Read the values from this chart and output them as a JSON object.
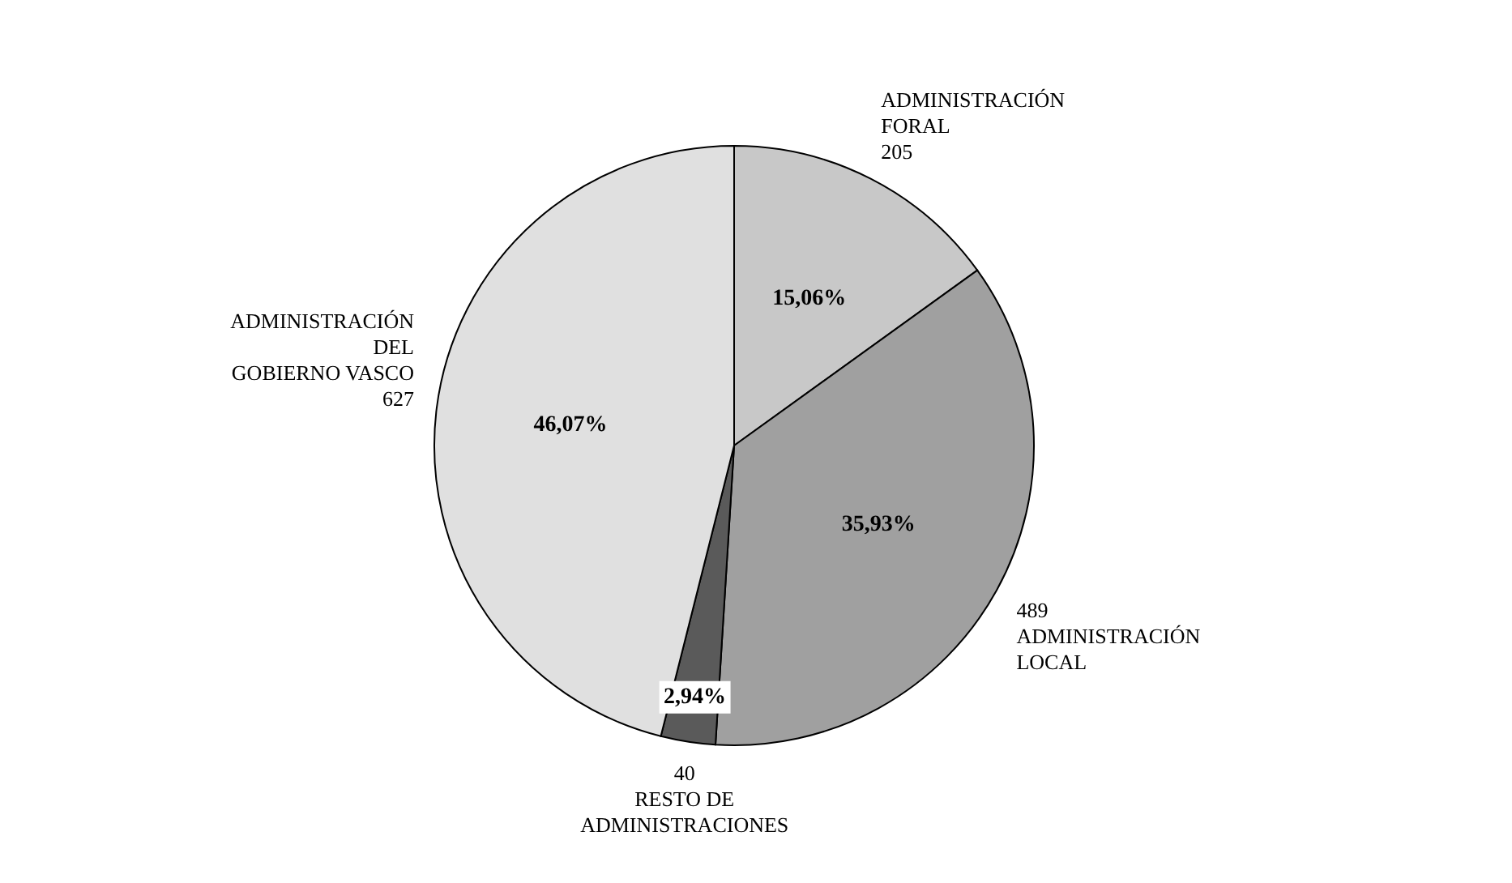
{
  "chart_data": {
    "type": "pie",
    "categories": [
      "ADMINISTRACIÓN\nFORAL\n205",
      "489\nADMINISTRACIÓN\nLOCAL",
      "40\nRESTO DE\nADMINISTRACIONES",
      "ADMINISTRACIÓN\nDEL\nGOBIERNO VASCO\n627"
    ],
    "values": [
      15.06,
      35.93,
      2.94,
      46.07
    ],
    "colors": [
      "#c8c8c8",
      "#a0a0a0",
      "#5a5a5a",
      "#e0e0e0"
    ],
    "value_labels": [
      "15,06%",
      "35,93%",
      "2,94%",
      "46,07%"
    ]
  }
}
